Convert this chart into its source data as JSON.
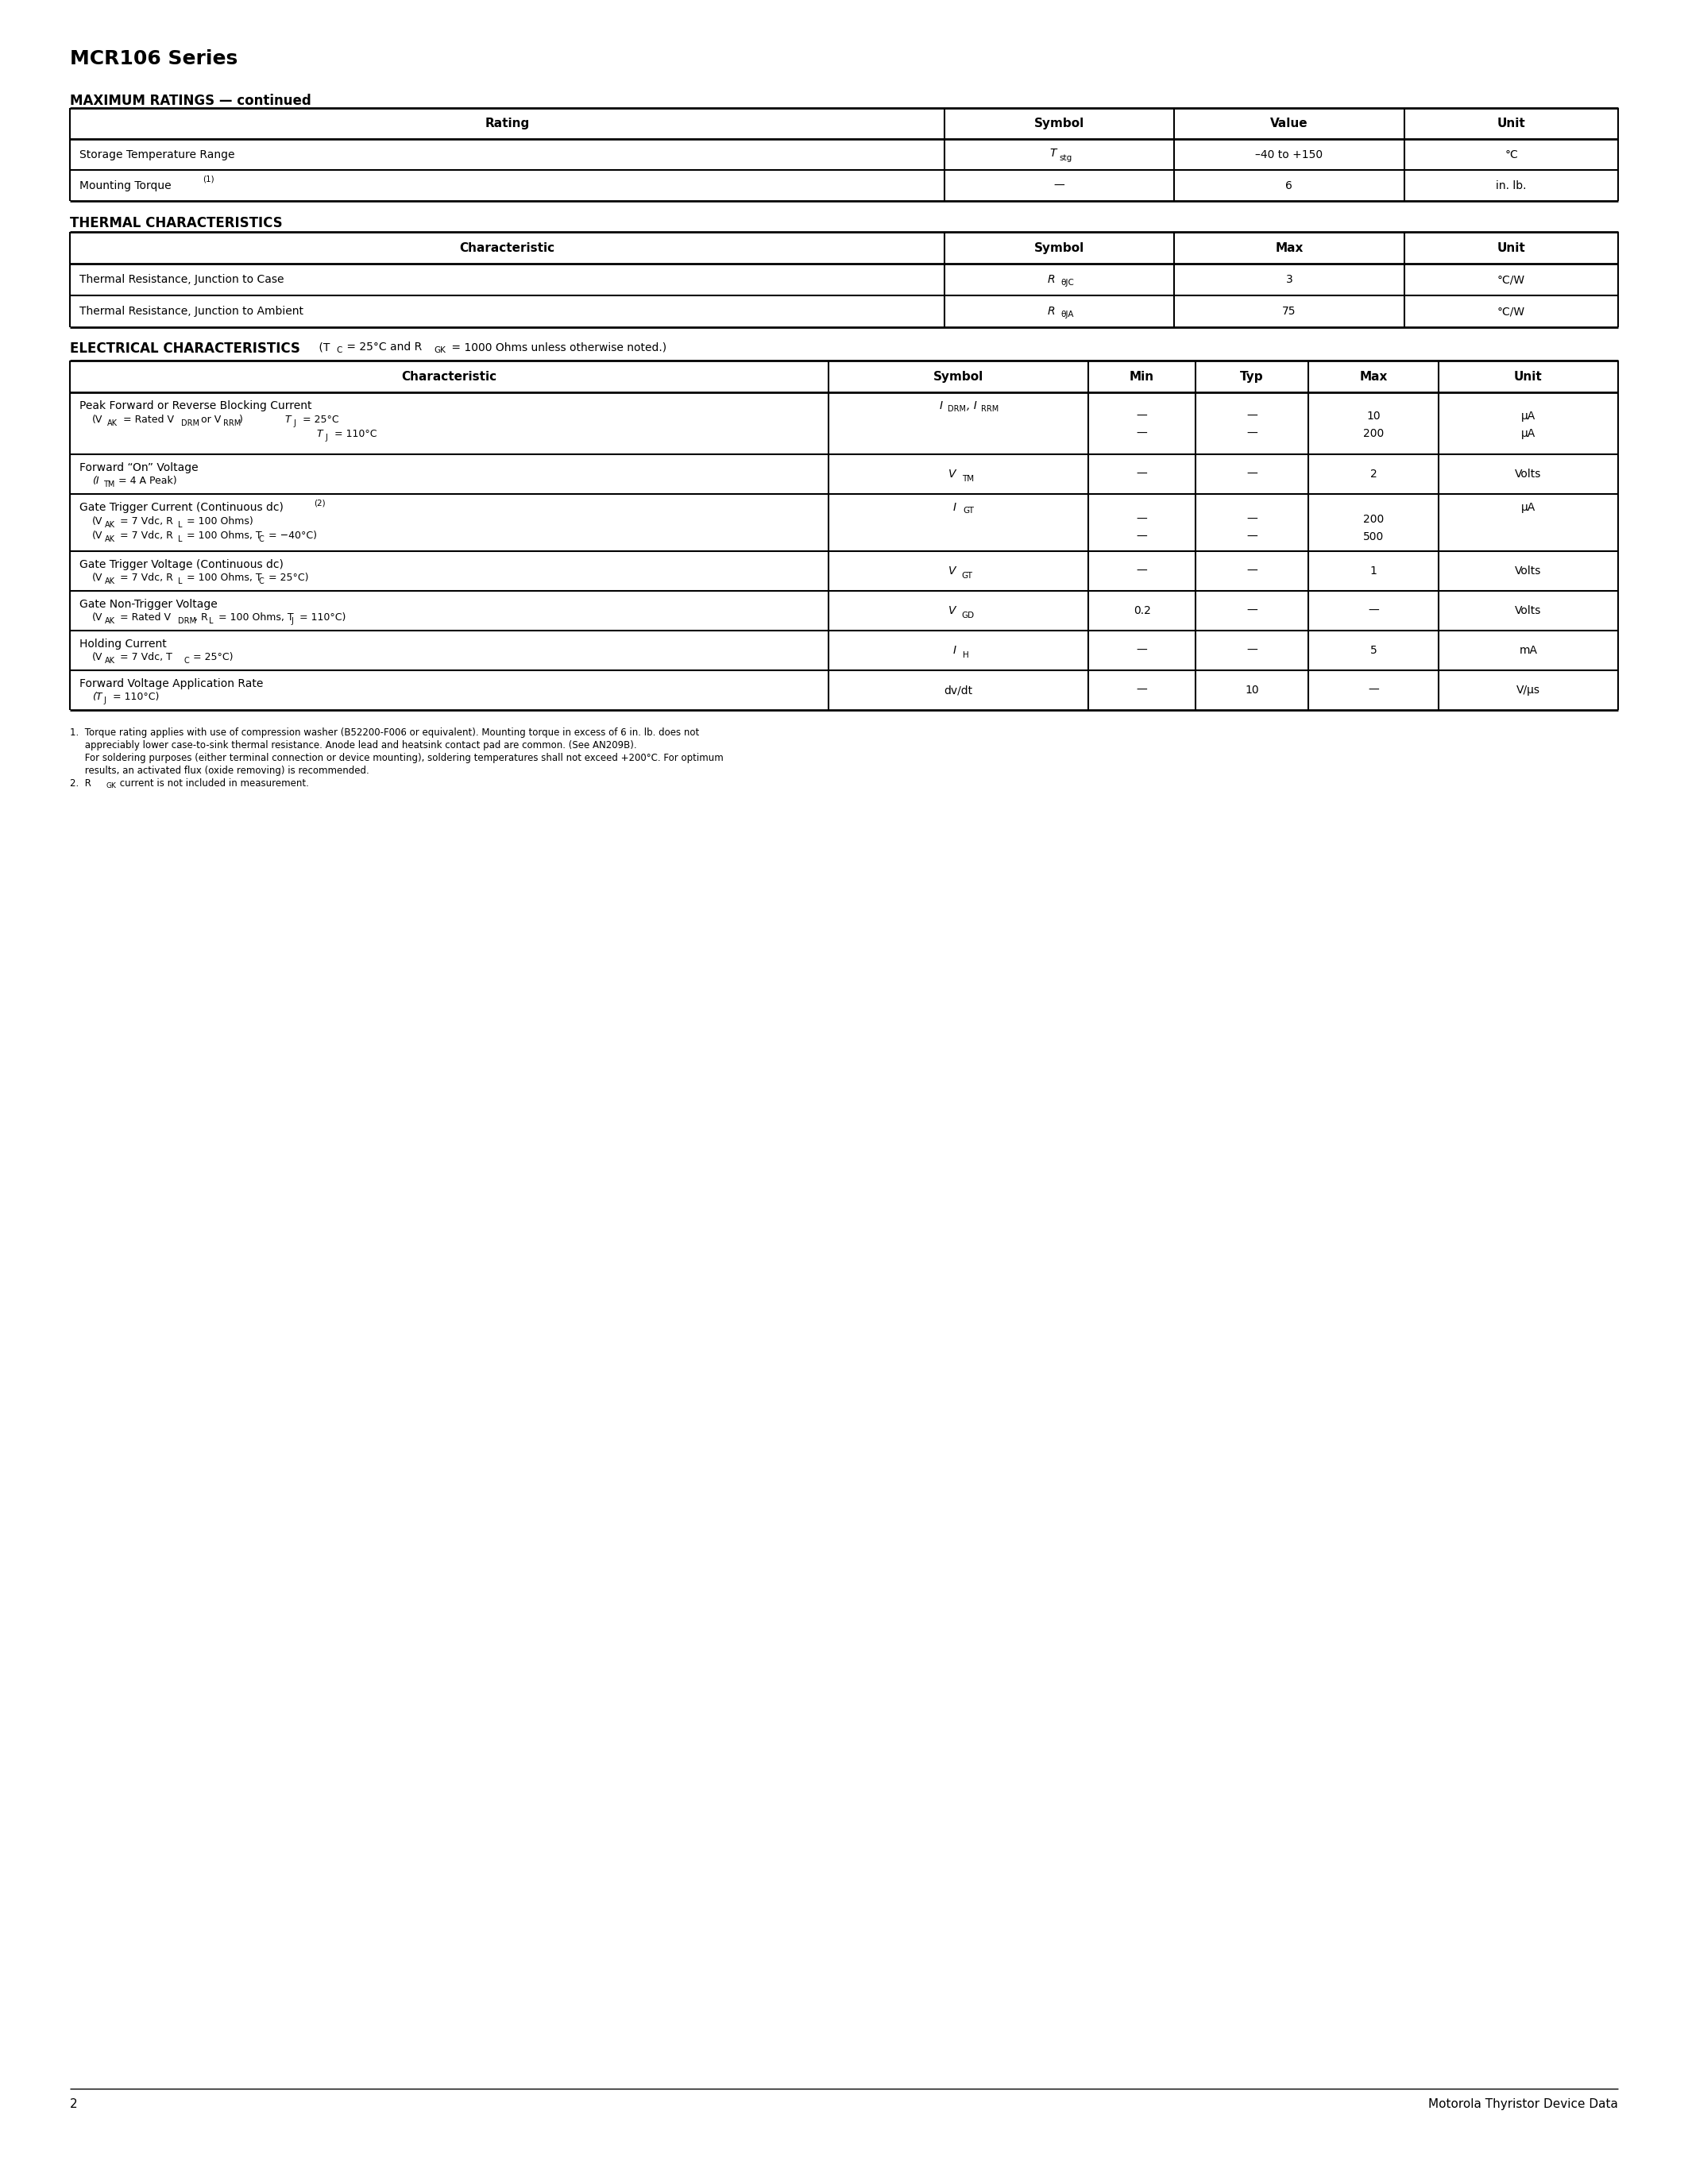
{
  "page_title": "MCR106 Series",
  "page_number": "2",
  "footer_text": "Motorola Thyristor Device Data",
  "bg_color": "#ffffff",
  "text_color": "#000000"
}
